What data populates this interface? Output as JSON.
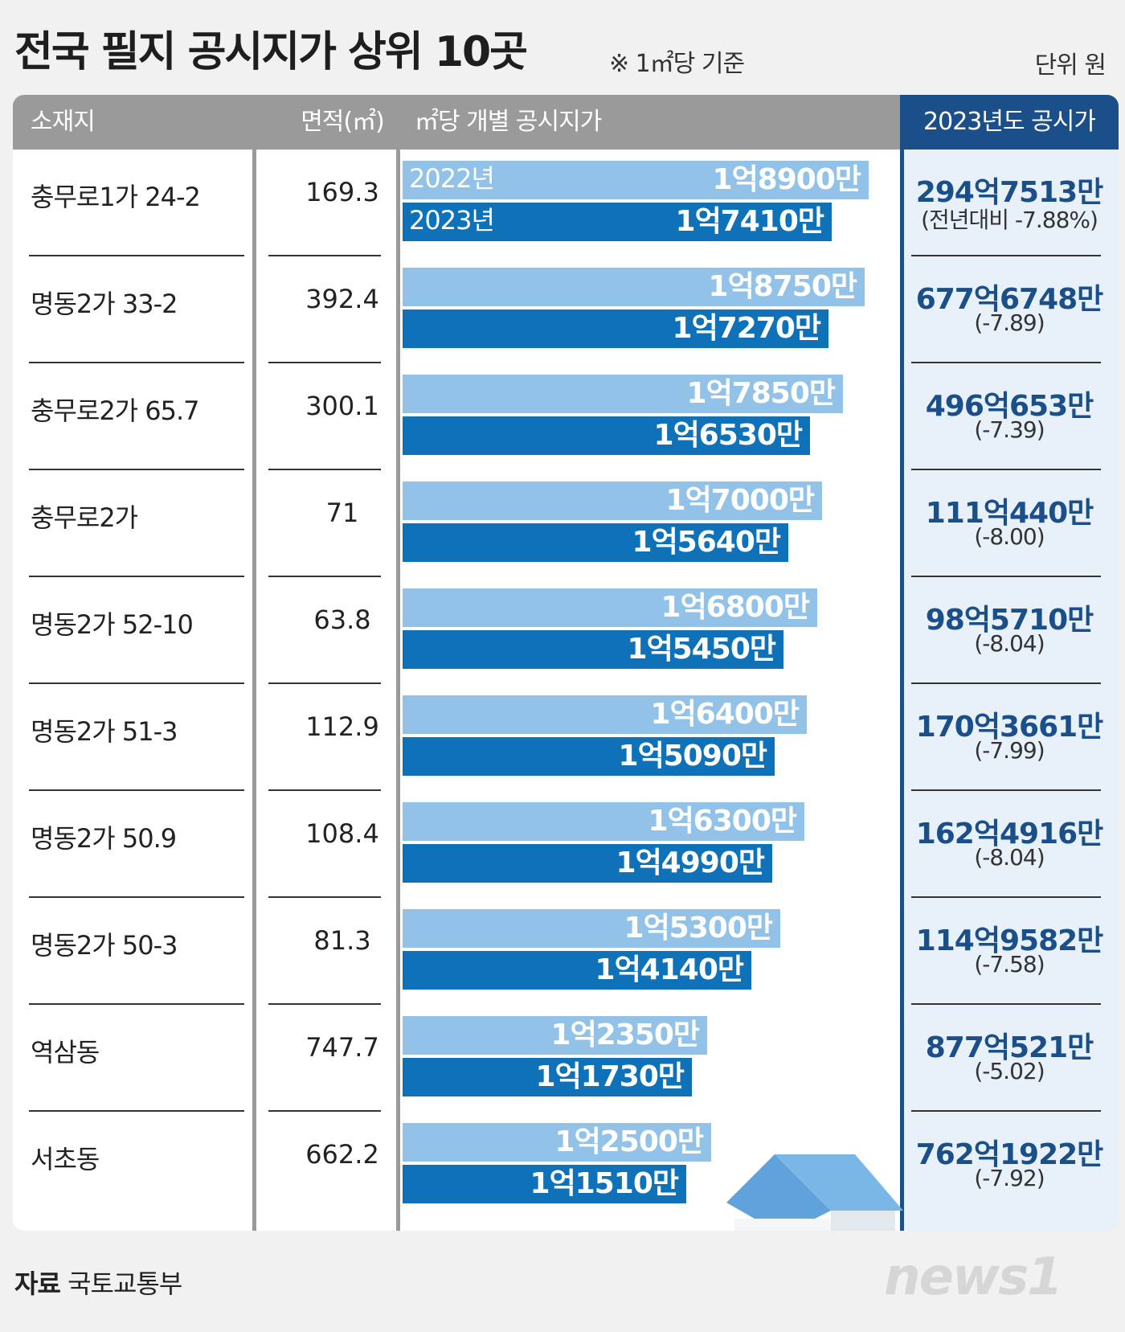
{
  "title": "전국 필지 공시지가 상위 10곳",
  "subnote": "※ 1㎡당 기준",
  "unit": "단위 원",
  "headers": {
    "location": "소재지",
    "area": "면적(㎡)",
    "price_per_m2": "㎡당 개별 공시지가",
    "price_2023": "2023년도 공시가"
  },
  "year_labels": {
    "y2022": "2022년",
    "y2023": "2023년"
  },
  "colors": {
    "bar_2022": "#93c2e8",
    "bar_2023": "#0f72b8",
    "accent": "#1b4f8a",
    "header_gray": "#9a9a9a"
  },
  "rows": [
    {
      "location": "충무로1가 24-2",
      "area": "169.3",
      "v2022_label": "1억8900만",
      "v2023_label": "1억7410만",
      "price_total": "294억7513만",
      "change": "(전년대비 -7.88%)"
    },
    {
      "location": "명동2가 33-2",
      "area": "392.4",
      "v2022_label": "1억8750만",
      "v2023_label": "1억7270만",
      "price_total": "677억6748만",
      "change": "(-7.89)"
    },
    {
      "location": "충무로2가 65.7",
      "area": "300.1",
      "v2022_label": "1억7850만",
      "v2023_label": "1억6530만",
      "price_total": "496억653만",
      "change": "(-7.39)"
    },
    {
      "location": "충무로2가",
      "area": "71",
      "v2022_label": "1억7000만",
      "v2023_label": "1억5640만",
      "price_total": "111억440만",
      "change": "(-8.00)"
    },
    {
      "location": "명동2가 52-10",
      "area": "63.8",
      "v2022_label": "1억6800만",
      "v2023_label": "1억5450만",
      "price_total": "98억5710만",
      "change": "(-8.04)"
    },
    {
      "location": "명동2가 51-3",
      "area": "112.9",
      "v2022_label": "1억6400만",
      "v2023_label": "1억5090만",
      "price_total": "170억3661만",
      "change": "(-7.99)"
    },
    {
      "location": "명동2가 50.9",
      "area": "108.4",
      "v2022_label": "1억6300만",
      "v2023_label": "1억4990만",
      "price_total": "162억4916만",
      "change": "(-8.04)"
    },
    {
      "location": "명동2가 50-3",
      "area": "81.3",
      "v2022_label": "1억5300만",
      "v2023_label": "1억4140만",
      "price_total": "114억9582만",
      "change": "(-7.58)"
    },
    {
      "location": "역삼동",
      "area": "747.7",
      "v2022_label": "1억2350만",
      "v2023_label": "1억1730만",
      "price_total": "877억521만",
      "change": "(-5.02)"
    },
    {
      "location": "서초동",
      "area": "662.2",
      "v2022_label": "1억2500만",
      "v2023_label": "1억1510만",
      "price_total": "762억1922만",
      "change": "(-7.92)"
    }
  ],
  "chart_data": {
    "type": "bar",
    "categories": [
      "충무로1가 24-2",
      "명동2가 33-2",
      "충무로2가 65.7",
      "충무로2가",
      "명동2가 52-10",
      "명동2가 51-3",
      "명동2가 50.9",
      "명동2가 50-3",
      "역삼동",
      "서초동"
    ],
    "series": [
      {
        "name": "2022년",
        "values": [
          189000000,
          187500000,
          178500000,
          170000000,
          168000000,
          164000000,
          163000000,
          153000000,
          123500000,
          125000000
        ]
      },
      {
        "name": "2023년",
        "values": [
          174100000,
          172700000,
          165300000,
          156400000,
          154500000,
          150900000,
          149900000,
          141400000,
          117300000,
          115100000
        ]
      }
    ],
    "orientation": "horizontal",
    "title": "전국 필지 공시지가 상위 10곳",
    "xlabel": "",
    "ylabel": "",
    "legend": "inline-first-row",
    "grid": false
  },
  "source": {
    "label": "자료",
    "text": "국토교통부"
  },
  "logo_text": "news1"
}
